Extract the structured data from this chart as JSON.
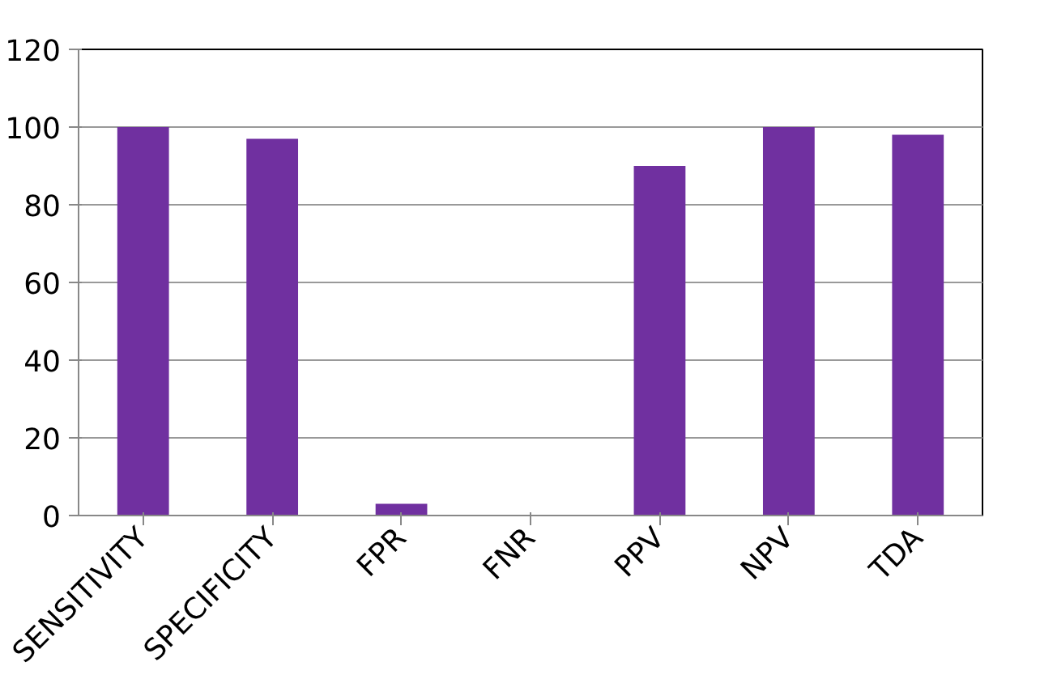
{
  "chart_data": {
    "type": "bar",
    "categories": [
      "SENSITIVITY",
      "SPECIFICITY",
      "FPR",
      "FNR",
      "PPV",
      "NPV",
      "TDA"
    ],
    "values": [
      100,
      97,
      3,
      0,
      90,
      100,
      98
    ],
    "color": "#7030a0",
    "ylim": [
      0,
      120
    ],
    "yticks": [
      0,
      20,
      40,
      60,
      80,
      100,
      120
    ],
    "grid": "y"
  }
}
